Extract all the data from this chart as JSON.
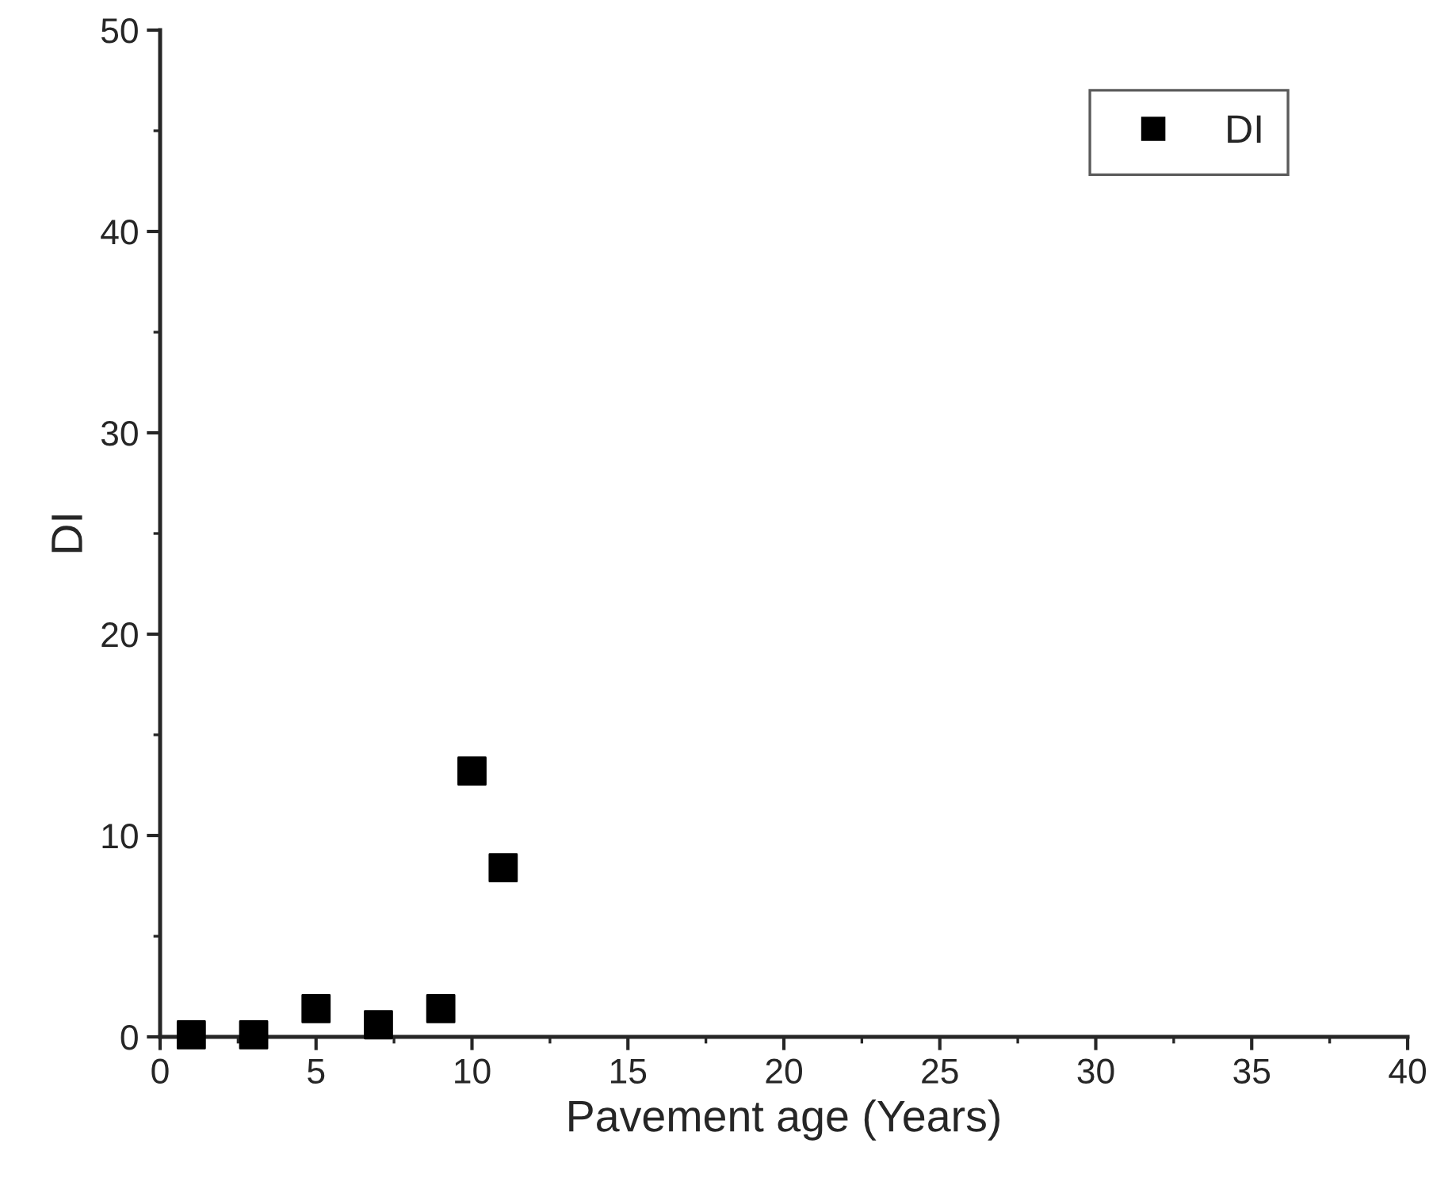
{
  "chart_data": {
    "type": "scatter",
    "xlabel": "Pavement age (Years)",
    "ylabel": "DI",
    "x": [
      1,
      3,
      5,
      7,
      9,
      10,
      11
    ],
    "series": [
      {
        "name": "DI",
        "color": "#000000",
        "values": [
          0.1,
          0.1,
          1.4,
          0.6,
          1.4,
          13.2,
          8.4
        ]
      }
    ],
    "marker": "square",
    "xlim": [
      0,
      40
    ],
    "xticks": [
      0,
      5,
      10,
      15,
      20,
      25,
      30,
      35,
      40
    ],
    "ylim": [
      0,
      50
    ],
    "yticks": [
      0,
      10,
      20,
      30,
      40,
      50
    ],
    "grid": false,
    "legend": "top right"
  }
}
